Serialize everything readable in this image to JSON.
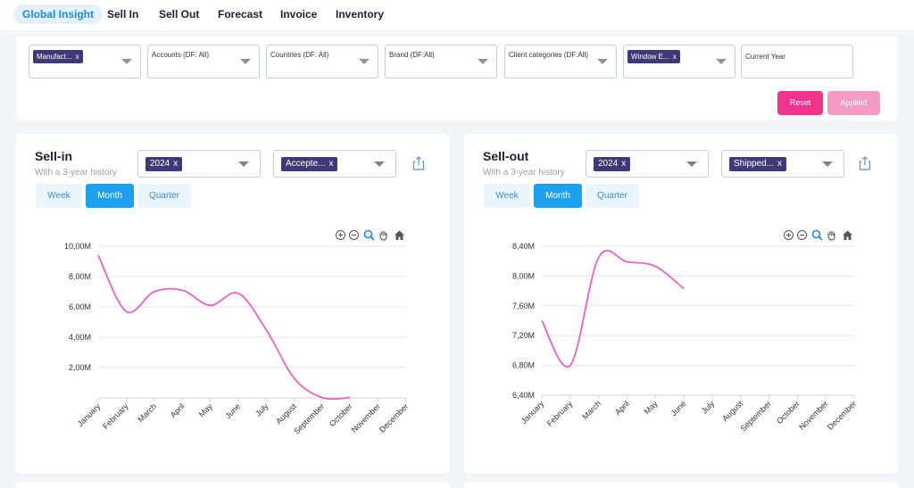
{
  "nav": {
    "tabs": [
      {
        "label": "Global Insight",
        "active": true
      },
      {
        "label": "Sell In"
      },
      {
        "label": "Sell Out"
      },
      {
        "label": "Forecast"
      },
      {
        "label": "Invoice"
      },
      {
        "label": "Inventory"
      }
    ]
  },
  "filters": {
    "manufacturer": {
      "chip": "Manufact...",
      "remove": "x"
    },
    "accounts": {
      "placeholder": "Accounts (DF: All)"
    },
    "countries": {
      "placeholder": "Countries (DF: All)"
    },
    "brand": {
      "placeholder": "Brand (DF:All)"
    },
    "client_categories": {
      "placeholder": "Client categories (DF:All)"
    },
    "window": {
      "chip": "Window E...",
      "remove": "x"
    },
    "period": {
      "value": "Current Year"
    },
    "reset_label": "Reset",
    "applied_label": "Applied"
  },
  "colors": {
    "accent": "#1ba1ee",
    "line": "#f25fc7",
    "chip": "#3e3a78",
    "reset": "#f0338c",
    "applied": "#f59bc5"
  },
  "cards": [
    {
      "title": "Sell-in",
      "subtitle": "With a 3-year history",
      "year_chip": "2024",
      "status_chip": "Accepte...",
      "remove": "x",
      "granularity": [
        "Week",
        "Month",
        "Quarter"
      ],
      "active_granularity": "Month",
      "toolbar_icons": [
        "zoom-in-icon",
        "zoom-out-icon",
        "zoom-select-icon",
        "pan-icon",
        "home-icon"
      ],
      "share_icon": "share-icon"
    },
    {
      "title": "Sell-out",
      "subtitle": "With a 3-year history",
      "year_chip": "2024",
      "status_chip": "Shipped...",
      "remove": "x",
      "granularity": [
        "Week",
        "Month",
        "Quarter"
      ],
      "active_granularity": "Month",
      "toolbar_icons": [
        "zoom-in-icon",
        "zoom-out-icon",
        "zoom-select-icon",
        "pan-icon",
        "home-icon"
      ],
      "share_icon": "share-icon"
    }
  ],
  "chart_data": [
    {
      "type": "line",
      "title": "Sell-in",
      "categories": [
        "January",
        "February",
        "March",
        "April",
        "May",
        "June",
        "July",
        "August",
        "September",
        "October",
        "November",
        "December"
      ],
      "ytick_labels": [
        "2,00M",
        "4,00M",
        "6,00M",
        "8,00M",
        "10,00M"
      ],
      "yticks": [
        2000000,
        4000000,
        6000000,
        8000000,
        10000000
      ],
      "ylim": [
        0,
        10000000
      ],
      "series": [
        {
          "values": [
            9400000,
            5700000,
            7000000,
            7100000,
            6100000,
            6900000,
            4500000,
            1300000,
            20000,
            20000,
            null,
            null
          ]
        }
      ],
      "grid": true
    },
    {
      "type": "line",
      "title": "Sell-out",
      "categories": [
        "January",
        "February",
        "March",
        "April",
        "May",
        "June",
        "July",
        "August",
        "September",
        "October",
        "November",
        "December"
      ],
      "ytick_labels": [
        "6,40M",
        "6,80M",
        "7,20M",
        "7,60M",
        "8,00M",
        "8,40M"
      ],
      "yticks": [
        6400000,
        6800000,
        7200000,
        7600000,
        8000000,
        8400000
      ],
      "ylim": [
        6400000,
        8400000
      ],
      "series": [
        {
          "values": [
            7400000,
            6800000,
            8250000,
            8190000,
            8130000,
            7830000,
            null,
            null,
            null,
            null,
            null,
            null
          ]
        }
      ],
      "grid": true
    }
  ]
}
